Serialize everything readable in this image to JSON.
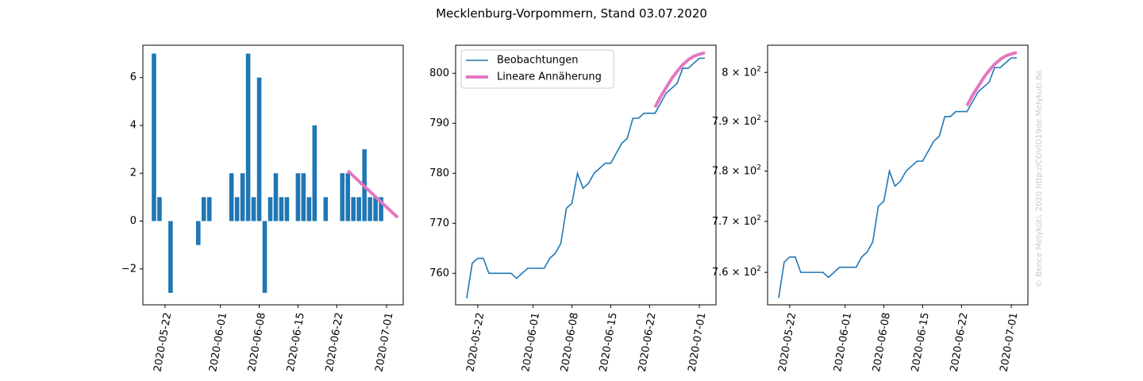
{
  "figure": {
    "title": "Mecklenburg-Vorpommern, Stand 03.07.2020",
    "credit": "© Bence Melykúti, 2020  http://COVID19de.Melykuti.Be"
  },
  "colors": {
    "bar": "#1f77b4",
    "line": "#1f77b4",
    "fit": "#e377c2"
  },
  "chart_data": [
    {
      "type": "bar",
      "title": "",
      "xlabel": "",
      "ylabel": "",
      "x_ticks": [
        "2020-05-22",
        "2020-06-01",
        "2020-06-08",
        "2020-06-15",
        "2020-06-22",
        "2020-07-01"
      ],
      "y_ticks": [
        "−2",
        "0",
        "2",
        "4",
        "6"
      ],
      "ylim": [
        -3.5,
        7.35
      ],
      "x": [
        "2020-05-20",
        "2020-05-21",
        "2020-05-22",
        "2020-05-23",
        "2020-05-24",
        "2020-05-25",
        "2020-05-26",
        "2020-05-27",
        "2020-05-28",
        "2020-05-29",
        "2020-05-30",
        "2020-05-31",
        "2020-06-01",
        "2020-06-02",
        "2020-06-03",
        "2020-06-04",
        "2020-06-05",
        "2020-06-06",
        "2020-06-07",
        "2020-06-08",
        "2020-06-09",
        "2020-06-10",
        "2020-06-11",
        "2020-06-12",
        "2020-06-13",
        "2020-06-14",
        "2020-06-15",
        "2020-06-16",
        "2020-06-17",
        "2020-06-18",
        "2020-06-19",
        "2020-06-20",
        "2020-06-21",
        "2020-06-22",
        "2020-06-23",
        "2020-06-24",
        "2020-06-25",
        "2020-06-26",
        "2020-06-27",
        "2020-06-28",
        "2020-06-29",
        "2020-06-30",
        "2020-07-01",
        "2020-07-02"
      ],
      "values": [
        7,
        1,
        0,
        -3,
        0,
        0,
        0,
        0,
        -1,
        1,
        1,
        0,
        0,
        0,
        2,
        1,
        2,
        7,
        1,
        6,
        -3,
        1,
        2,
        1,
        1,
        0,
        2,
        2,
        1,
        4,
        0,
        1,
        0,
        0,
        2,
        2,
        1,
        1,
        3,
        1,
        1,
        1,
        0,
        0
      ],
      "series": [
        {
          "name": "",
          "values": [
            7,
            1,
            0,
            -3,
            0,
            0,
            0,
            0,
            -1,
            1,
            1,
            0,
            0,
            0,
            2,
            1,
            2,
            7,
            1,
            6,
            -3,
            1,
            2,
            1,
            1,
            0,
            2,
            2,
            1,
            4,
            0,
            1,
            0,
            0,
            2,
            2,
            1,
            1,
            3,
            1,
            1,
            1,
            0,
            0
          ]
        }
      ],
      "fit": {
        "x": [
          "2020-06-24",
          "2020-07-03"
        ],
        "y": [
          2.1,
          0.15
        ]
      }
    },
    {
      "type": "line",
      "title": "",
      "xlabel": "",
      "ylabel": "",
      "x_ticks": [
        "2020-05-22",
        "2020-06-01",
        "2020-06-08",
        "2020-06-15",
        "2020-06-22",
        "2020-07-01"
      ],
      "y_ticks": [
        "760",
        "770",
        "780",
        "790",
        "800"
      ],
      "ylim": [
        753.7,
        805.6
      ],
      "legend": {
        "position": "upper left",
        "entries": [
          "Beobachtungen",
          "Lineare Annäherung"
        ]
      },
      "series": [
        {
          "name": "Beobachtungen",
          "x": [
            "2020-05-20",
            "2020-05-21",
            "2020-05-22",
            "2020-05-23",
            "2020-05-24",
            "2020-05-25",
            "2020-05-26",
            "2020-05-27",
            "2020-05-28",
            "2020-05-29",
            "2020-05-30",
            "2020-05-31",
            "2020-06-01",
            "2020-06-02",
            "2020-06-03",
            "2020-06-04",
            "2020-06-05",
            "2020-06-06",
            "2020-06-07",
            "2020-06-08",
            "2020-06-09",
            "2020-06-10",
            "2020-06-11",
            "2020-06-12",
            "2020-06-13",
            "2020-06-14",
            "2020-06-15",
            "2020-06-16",
            "2020-06-17",
            "2020-06-18",
            "2020-06-19",
            "2020-06-20",
            "2020-06-21",
            "2020-06-22",
            "2020-06-23",
            "2020-06-24",
            "2020-06-25",
            "2020-06-26",
            "2020-06-27",
            "2020-06-28",
            "2020-06-29",
            "2020-06-30",
            "2020-07-01",
            "2020-07-02"
          ],
          "values": [
            755,
            762,
            763,
            763,
            760,
            760,
            760,
            760,
            760,
            759,
            760,
            761,
            761,
            761,
            761,
            763,
            764,
            766,
            773,
            774,
            780,
            777,
            778,
            780,
            781,
            782,
            782,
            784,
            786,
            787,
            791,
            791,
            792,
            792,
            792,
            794,
            796,
            797,
            798,
            801,
            801,
            802,
            803,
            803
          ]
        },
        {
          "name": "Lineare Annäherung",
          "x": [
            "2020-06-23",
            "2020-06-24",
            "2020-06-25",
            "2020-06-26",
            "2020-06-27",
            "2020-06-28",
            "2020-06-29",
            "2020-06-30",
            "2020-07-01",
            "2020-07-02"
          ],
          "values": [
            793.2,
            795.3,
            797.1,
            798.9,
            800.4,
            801.7,
            802.7,
            803.4,
            803.8,
            804.1
          ]
        }
      ]
    },
    {
      "type": "line",
      "title": "",
      "xlabel": "",
      "ylabel": "",
      "scale": "log",
      "x_ticks": [
        "2020-05-22",
        "2020-06-01",
        "2020-06-08",
        "2020-06-15",
        "2020-06-22",
        "2020-07-01"
      ],
      "y_ticks": [
        {
          "value": 760,
          "mantissa": "7.6",
          "base": "10",
          "exp": "2",
          "plain": ""
        },
        {
          "value": 770,
          "mantissa": "7.7",
          "base": "10",
          "exp": "2",
          "plain": ""
        },
        {
          "value": 780,
          "mantissa": "7.8",
          "base": "10",
          "exp": "2",
          "plain": ""
        },
        {
          "value": 790,
          "mantissa": "7.9",
          "base": "10",
          "exp": "2",
          "plain": ""
        },
        {
          "value": 800,
          "mantissa": "",
          "base": "10",
          "exp": "2",
          "plain": "8"
        }
      ],
      "ylim": [
        753.7,
        805.6
      ],
      "series": [
        {
          "name": "Beobachtungen",
          "values": [
            755,
            762,
            763,
            763,
            760,
            760,
            760,
            760,
            760,
            759,
            760,
            761,
            761,
            761,
            761,
            763,
            764,
            766,
            773,
            774,
            780,
            777,
            778,
            780,
            781,
            782,
            782,
            784,
            786,
            787,
            791,
            791,
            792,
            792,
            792,
            794,
            796,
            797,
            798,
            801,
            801,
            802,
            803,
            803
          ]
        },
        {
          "name": "Lineare Annäherung",
          "values": [
            793.2,
            795.3,
            797.1,
            798.9,
            800.4,
            801.7,
            802.7,
            803.4,
            803.8,
            804.1
          ]
        }
      ]
    }
  ]
}
